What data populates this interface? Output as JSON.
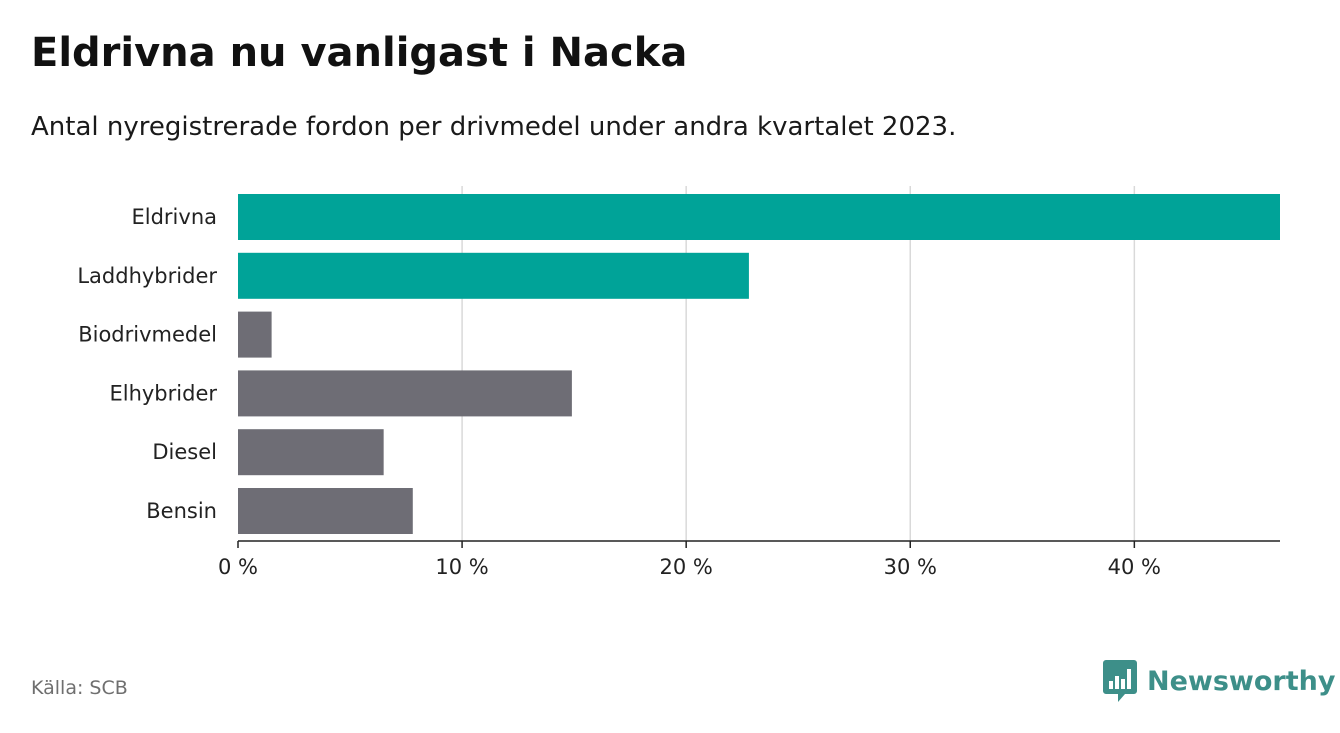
{
  "title": "Eldrivna nu vanligast i Nacka",
  "subtitle": "Antal nyregistrerade fordon per drivmedel under andra kvartalet 2023.",
  "source": "Källa: SCB",
  "brand": "Newsworthy",
  "colors": {
    "highlight": "#00a398",
    "default": "#6e6d75",
    "grid": "#d9d9d9",
    "axis": "#222222",
    "brand": "#3d8f89"
  },
  "chart_data": {
    "type": "bar",
    "orientation": "horizontal",
    "categories": [
      "Eldrivna",
      "Laddhybrider",
      "Biodrivmedel",
      "Elhybrider",
      "Diesel",
      "Bensin"
    ],
    "values": [
      46.5,
      22.8,
      1.5,
      14.9,
      6.5,
      7.8
    ],
    "highlighted": [
      true,
      true,
      false,
      false,
      false,
      false
    ],
    "value_unit": "%",
    "xlim": [
      0,
      46.5
    ],
    "xticks": [
      0,
      10,
      20,
      30,
      40
    ],
    "xtick_labels": [
      "0 %",
      "10 %",
      "20 %",
      "30 %",
      "40 %"
    ],
    "xlabel": "",
    "ylabel": "",
    "grid": true,
    "legend": "none"
  }
}
